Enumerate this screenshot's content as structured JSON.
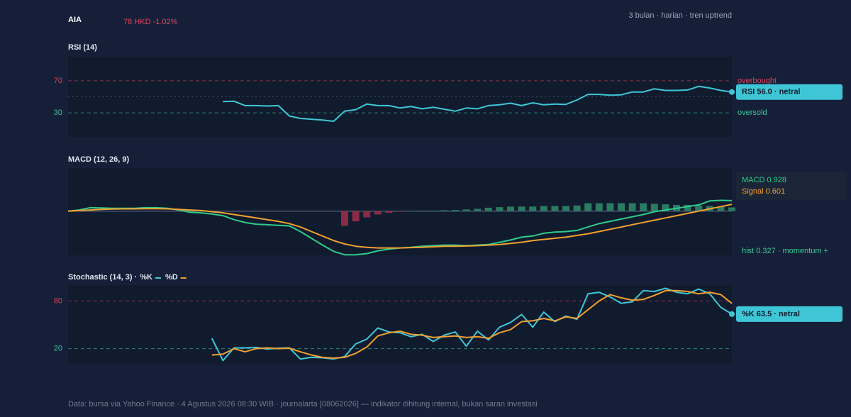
{
  "header": {
    "ticker": "AIA",
    "price": "78 HKD -1.02%",
    "subtitle": "3 bulan · harian · tren uptrend"
  },
  "footer": "Data: bursa via Yahoo Finance · 4 Agustus 2026 08:30 WIB · journalarta [08062026] — indikator dihitung internal, bukan saran investasi",
  "chart_data": [
    {
      "type": "line",
      "title": "RSI (14)",
      "ylim": [
        0,
        100
      ],
      "yticks": [
        30,
        70
      ],
      "tick_colors": [
        "#3ec99a",
        "#e0405a"
      ],
      "grid": true,
      "midline": 50,
      "annotations": [
        {
          "text": "oversold",
          "value": 30,
          "color": "#3ec99a"
        },
        {
          "text": "overbought",
          "value": 70,
          "color": "#e0405a"
        }
      ],
      "series": [
        {
          "name": "RSI",
          "color": "#3ec6d6",
          "badge": "RSI 56.0 · netral",
          "values": [
            null,
            null,
            null,
            null,
            null,
            null,
            null,
            null,
            null,
            null,
            null,
            null,
            null,
            null,
            44,
            44.5,
            39,
            39,
            38.5,
            39,
            26,
            23,
            22,
            21,
            19.5,
            32,
            34,
            41,
            39,
            39,
            36,
            38,
            35,
            37,
            34.5,
            32,
            36,
            35,
            39,
            40,
            42,
            39,
            42.5,
            40,
            41,
            40.5,
            46,
            53,
            53,
            52,
            52.5,
            56,
            56,
            60,
            58,
            58,
            58.5,
            63,
            61,
            58,
            56
          ]
        }
      ]
    },
    {
      "type": "combo",
      "title": "MACD (12, 26, 9)",
      "ylim": [
        -3.9,
        3.8
      ],
      "baseline": 0,
      "series": [
        {
          "name": "hist",
          "kind": "bar",
          "color_positive": "#2b7a62",
          "color_negative": "#8a2a45",
          "badge": "hist 0.327 · momentum +",
          "badge_color": "#3ec99a",
          "values": [
            null,
            null,
            null,
            null,
            null,
            null,
            null,
            null,
            null,
            null,
            null,
            null,
            null,
            null,
            null,
            null,
            null,
            null,
            null,
            null,
            null,
            null,
            null,
            null,
            null,
            -1.3,
            -0.9,
            -0.55,
            -0.3,
            -0.15,
            -0.05,
            0.02,
            0.05,
            0.05,
            0.08,
            0.1,
            0.15,
            0.2,
            0.3,
            0.35,
            0.4,
            0.4,
            0.4,
            0.45,
            0.45,
            0.45,
            0.5,
            0.7,
            0.7,
            0.7,
            0.7,
            0.7,
            0.7,
            0.65,
            0.6,
            0.55,
            0.55,
            0.5,
            0.45,
            0.4,
            0.327
          ]
        },
        {
          "name": "MACD",
          "kind": "line",
          "color": "#2ecc8a",
          "badge": "MACD 0.928",
          "values": [
            0,
            0.1,
            0.3,
            0.28,
            0.25,
            0.25,
            0.25,
            0.3,
            0.3,
            0.25,
            0.1,
            -0.1,
            -0.15,
            -0.25,
            -0.4,
            -0.75,
            -1.0,
            -1.15,
            -1.2,
            -1.25,
            -1.3,
            -1.8,
            -2.4,
            -3.0,
            -3.55,
            -3.85,
            -3.85,
            -3.75,
            -3.5,
            -3.35,
            -3.25,
            -3.2,
            -3.1,
            -3.05,
            -3.0,
            -3.0,
            -3.05,
            -3.0,
            -2.95,
            -2.75,
            -2.55,
            -2.3,
            -2.2,
            -1.95,
            -1.85,
            -1.8,
            -1.7,
            -1.4,
            -1.1,
            -0.9,
            -0.7,
            -0.5,
            -0.3,
            -0.05,
            0.1,
            0.25,
            0.4,
            0.55,
            0.9,
            0.95,
            0.928
          ]
        },
        {
          "name": "Signal",
          "kind": "line",
          "color": "#f0a030",
          "badge": "Signal 0.601",
          "values": [
            0,
            0.05,
            0.1,
            0.15,
            0.18,
            0.2,
            0.2,
            0.22,
            0.22,
            0.2,
            0.15,
            0.1,
            0.05,
            -0.05,
            -0.15,
            -0.3,
            -0.45,
            -0.6,
            -0.75,
            -0.9,
            -1.1,
            -1.4,
            -1.8,
            -2.2,
            -2.6,
            -2.9,
            -3.1,
            -3.2,
            -3.25,
            -3.25,
            -3.25,
            -3.22,
            -3.2,
            -3.15,
            -3.1,
            -3.1,
            -3.08,
            -3.05,
            -3.0,
            -2.95,
            -2.85,
            -2.75,
            -2.6,
            -2.5,
            -2.4,
            -2.3,
            -2.15,
            -2.0,
            -1.8,
            -1.6,
            -1.4,
            -1.2,
            -1.0,
            -0.8,
            -0.6,
            -0.4,
            -0.2,
            0.0,
            0.2,
            0.4,
            0.601
          ]
        }
      ]
    },
    {
      "type": "line",
      "title": "Stochastic (14, 3) ·",
      "ylim": [
        0,
        100
      ],
      "yticks": [
        20,
        80
      ],
      "tick_colors": [
        "#3ec99a",
        "#e0405a"
      ],
      "grid": true,
      "legend": true,
      "series": [
        {
          "name": "%K",
          "color": "#3ec6d6",
          "badge": "%K 63.5 · netral",
          "values": [
            null,
            null,
            null,
            null,
            null,
            null,
            null,
            null,
            null,
            null,
            null,
            null,
            null,
            33,
            5,
            21,
            21,
            21.5,
            19.5,
            20.5,
            21,
            7,
            9,
            8.5,
            7,
            10,
            26,
            32,
            46,
            41,
            40,
            35,
            38,
            29,
            37,
            41,
            23,
            42,
            31,
            47,
            53,
            63,
            47,
            66,
            54,
            61,
            57,
            89,
            91,
            85,
            77,
            79,
            93,
            92,
            96,
            91,
            89,
            95,
            89,
            72,
            63.5
          ]
        },
        {
          "name": "%D",
          "color": "#f0a030",
          "values": [
            null,
            null,
            null,
            null,
            null,
            null,
            null,
            null,
            null,
            null,
            null,
            null,
            null,
            12,
            13,
            20,
            16,
            20,
            21,
            20,
            20.5,
            16,
            12,
            9,
            8,
            9,
            14,
            22,
            36,
            40,
            42,
            38,
            37,
            34,
            35,
            36,
            34,
            35,
            33,
            40,
            44,
            54,
            55,
            58,
            55,
            60,
            58,
            69,
            80,
            88,
            84,
            81,
            82,
            87,
            93,
            93,
            92,
            89,
            91,
            88,
            77
          ]
        }
      ]
    }
  ]
}
